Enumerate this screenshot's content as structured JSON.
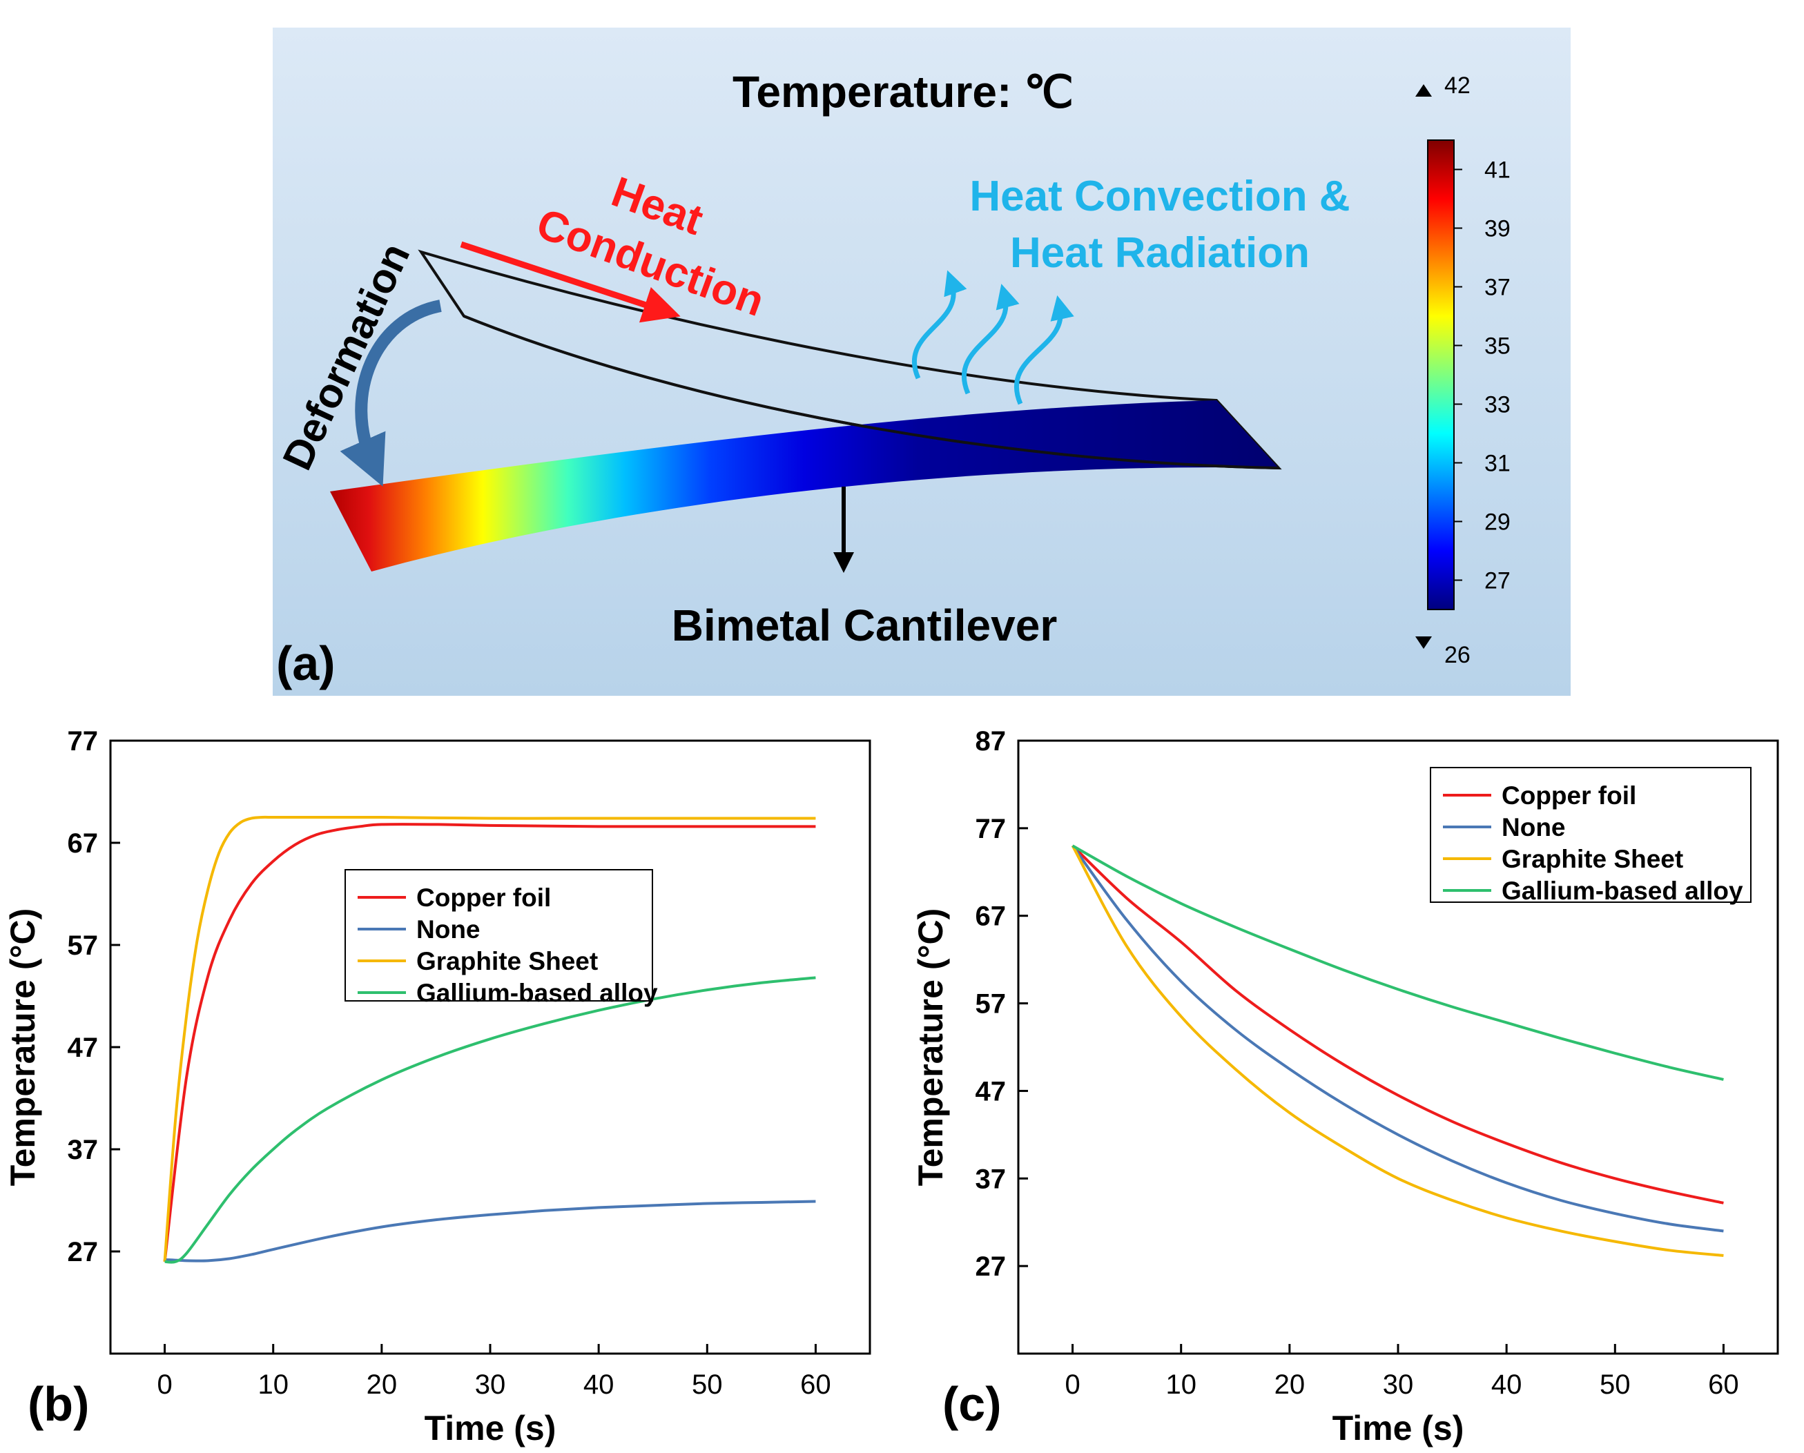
{
  "panel_a": {
    "label": "(a)",
    "title": "Temperature: ℃",
    "heat_conduction_line1": "Heat",
    "heat_conduction_line2": "Conduction",
    "heat_convection_line1": "Heat Convection &",
    "heat_convection_line2": "Heat Radiation",
    "deformation": "Deformation",
    "cantilever": "Bimetal Cantilever",
    "colorbar": {
      "max": "42",
      "min": "26",
      "ticks": [
        "41",
        "39",
        "37",
        "35",
        "33",
        "31",
        "29",
        "27"
      ]
    },
    "colors": {
      "background_top": "#d9e8f5",
      "background_bottom": "#b9d4ea",
      "conduction": "#ff1a1a",
      "convection": "#1fb4ea",
      "deformation_arrow": "#3a6ea5"
    }
  },
  "panel_b": {
    "label": "(b)"
  },
  "panel_c": {
    "label": "(c)"
  },
  "chart_data": [
    {
      "type": "line",
      "panel": "(b)",
      "title": "",
      "xlabel": "Time (s)",
      "ylabel": "Temperature (°C)",
      "xlim": [
        -5,
        65
      ],
      "ylim": [
        17,
        77
      ],
      "xticks": [
        "0",
        "10",
        "20",
        "30",
        "40",
        "50",
        "60"
      ],
      "yticks": [
        "27",
        "37",
        "47",
        "57",
        "67",
        "77"
      ],
      "legend_position": "center",
      "series": [
        {
          "name": "Copper foil",
          "color": "#ee1c1c",
          "x": [
            0,
            2,
            4,
            6,
            8,
            10,
            12,
            14,
            16,
            18,
            20,
            25,
            30,
            40,
            50,
            60
          ],
          "y": [
            26,
            44,
            54,
            59.5,
            63,
            65.2,
            66.8,
            67.8,
            68.3,
            68.6,
            68.8,
            68.8,
            68.7,
            68.6,
            68.6,
            68.6
          ]
        },
        {
          "name": "None",
          "color": "#4a78b5",
          "x": [
            0,
            2,
            4,
            6,
            8,
            10,
            15,
            20,
            25,
            30,
            35,
            40,
            45,
            50,
            55,
            60
          ],
          "y": [
            26.2,
            26.1,
            26.1,
            26.3,
            26.7,
            27.2,
            28.4,
            29.4,
            30.1,
            30.6,
            31,
            31.3,
            31.5,
            31.7,
            31.8,
            31.9
          ]
        },
        {
          "name": "Graphite Sheet",
          "color": "#f5b800",
          "x": [
            0,
            1,
            2,
            3,
            4,
            5,
            6,
            7,
            8,
            9,
            10,
            15,
            20,
            30,
            40,
            50,
            60
          ],
          "y": [
            26,
            40,
            50,
            57.5,
            62.5,
            66,
            68,
            69,
            69.4,
            69.5,
            69.5,
            69.5,
            69.5,
            69.4,
            69.4,
            69.4,
            69.4
          ]
        },
        {
          "name": "Gallium-based alloy",
          "color": "#2ebf6e",
          "x": [
            0,
            1,
            2,
            4,
            6,
            8,
            10,
            12,
            15,
            20,
            25,
            30,
            35,
            40,
            45,
            50,
            55,
            60
          ],
          "y": [
            26,
            26,
            26.8,
            29.7,
            32.6,
            35,
            37,
            38.8,
            41,
            43.8,
            46,
            47.8,
            49.3,
            50.6,
            51.7,
            52.6,
            53.3,
            53.8
          ]
        }
      ]
    },
    {
      "type": "line",
      "panel": "(c)",
      "title": "",
      "xlabel": "Time (s)",
      "ylabel": "Temperature (°C)",
      "xlim": [
        -5,
        65
      ],
      "ylim": [
        17,
        87
      ],
      "xticks": [
        "0",
        "10",
        "20",
        "30",
        "40",
        "50",
        "60"
      ],
      "yticks": [
        "27",
        "37",
        "47",
        "57",
        "67",
        "77",
        "87"
      ],
      "legend_position": "top-right",
      "series": [
        {
          "name": "Copper foil",
          "color": "#ee1c1c",
          "x": [
            0,
            5,
            10,
            15,
            20,
            25,
            30,
            35,
            40,
            45,
            50,
            55,
            60
          ],
          "y": [
            75,
            69,
            64,
            58.5,
            54,
            50,
            46.5,
            43.5,
            41,
            38.8,
            37,
            35.5,
            34.2
          ]
        },
        {
          "name": "None",
          "color": "#4a78b5",
          "x": [
            0,
            5,
            10,
            15,
            20,
            25,
            30,
            35,
            40,
            45,
            50,
            55,
            60
          ],
          "y": [
            75,
            66.5,
            59.5,
            54,
            49.5,
            45.5,
            42,
            39,
            36.5,
            34.5,
            33,
            31.8,
            31
          ]
        },
        {
          "name": "Graphite Sheet",
          "color": "#f5b800",
          "x": [
            0,
            5,
            10,
            15,
            20,
            25,
            30,
            35,
            40,
            45,
            50,
            55,
            60
          ],
          "y": [
            75,
            63.5,
            55.5,
            49.5,
            44.5,
            40.5,
            37,
            34.5,
            32.5,
            31,
            29.8,
            28.8,
            28.2
          ]
        },
        {
          "name": "Gallium-based alloy",
          "color": "#2ebf6e",
          "x": [
            0,
            5,
            10,
            15,
            20,
            25,
            30,
            35,
            40,
            45,
            50,
            55,
            60
          ],
          "y": [
            75,
            71.5,
            68.4,
            65.7,
            63.2,
            60.8,
            58.6,
            56.6,
            54.8,
            53,
            51.3,
            49.7,
            48.3
          ]
        }
      ]
    }
  ]
}
